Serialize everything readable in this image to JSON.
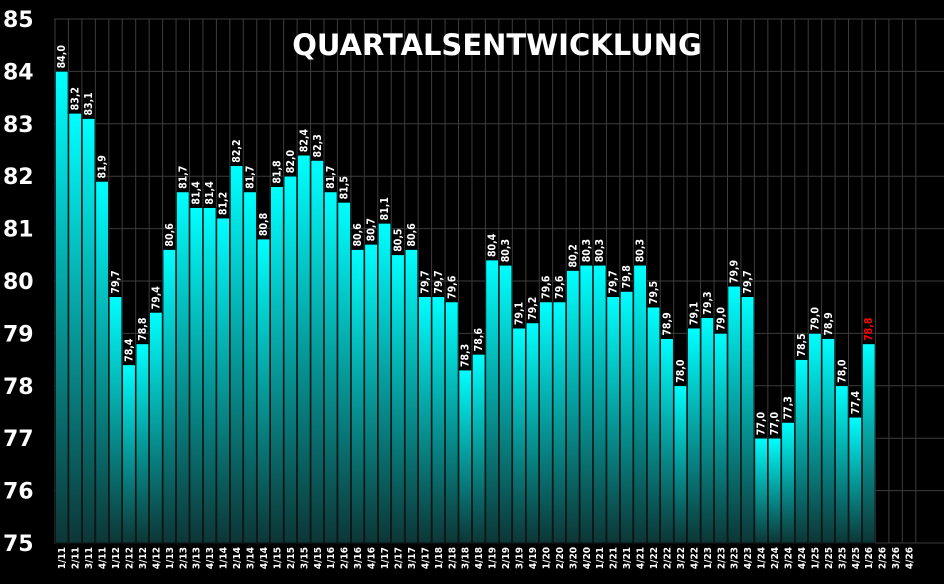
{
  "chart_data": {
    "type": "bar",
    "title": "QUARTALSENTWICKLUNG",
    "xlabel": "",
    "ylabel": "",
    "ylim": [
      75,
      85
    ],
    "yticks": [
      "75",
      "76",
      "77",
      "78",
      "79",
      "80",
      "81",
      "82",
      "83",
      "84",
      "85"
    ],
    "grid": true,
    "categories": [
      "1/11",
      "2/11",
      "3/11",
      "4/11",
      "1/12",
      "2/12",
      "3/12",
      "4/12",
      "1/13",
      "2/13",
      "3/13",
      "4/13",
      "1/14",
      "2/14",
      "3/14",
      "4/14",
      "1/15",
      "2/15",
      "3/15",
      "4/15",
      "1/16",
      "2/16",
      "3/16",
      "4/16",
      "1/17",
      "2/17",
      "3/17",
      "4/17",
      "1/18",
      "2/18",
      "3/18",
      "4/18",
      "1/19",
      "2/19",
      "3/19",
      "4/19",
      "1/20",
      "2/20",
      "3/20",
      "4/20",
      "1/21",
      "2/21",
      "3/21",
      "4/21",
      "1/22",
      "2/22",
      "3/22",
      "4/22",
      "1/23",
      "2/23",
      "3/23",
      "4/23",
      "1/24",
      "2/24",
      "3/24",
      "4/24",
      "1/25",
      "2/25",
      "3/25",
      "4/25",
      "1/26",
      "2/26",
      "3/26",
      "4/26"
    ],
    "values": [
      84.0,
      83.2,
      83.1,
      81.9,
      79.7,
      78.4,
      78.8,
      79.4,
      80.6,
      81.7,
      81.4,
      81.4,
      81.2,
      82.2,
      81.7,
      80.8,
      81.8,
      82.0,
      82.4,
      82.3,
      81.7,
      81.5,
      80.6,
      80.7,
      81.1,
      80.5,
      80.6,
      79.7,
      79.7,
      79.6,
      78.3,
      78.6,
      80.4,
      80.3,
      79.1,
      79.2,
      79.6,
      79.6,
      80.2,
      80.3,
      80.3,
      79.7,
      79.8,
      80.3,
      79.5,
      78.9,
      78.0,
      79.1,
      79.3,
      79.0,
      79.9,
      79.7,
      77.0,
      77.0,
      77.3,
      78.5,
      79.0,
      78.9,
      78.0,
      77.4,
      78.8,
      null,
      null,
      null
    ],
    "data_labels": [
      "84,0",
      "83,2",
      "83,1",
      "81,9",
      "79,7",
      "78,4",
      "78,8",
      "79,4",
      "80,6",
      "81,7",
      "81,4",
      "81,4",
      "81,2",
      "82,2",
      "81,7",
      "80,8",
      "81,8",
      "82,0",
      "82,4",
      "82,3",
      "81,7",
      "81,5",
      "80,6",
      "80,7",
      "81,1",
      "80,5",
      "80,6",
      "79,7",
      "79,7",
      "79,6",
      "78,3",
      "78,6",
      "80,4",
      "80,3",
      "79,1",
      "79,2",
      "79,6",
      "79,6",
      "80,2",
      "80,3",
      "80,3",
      "79,7",
      "79,8",
      "80,3",
      "79,5",
      "78,9",
      "78,0",
      "79,1",
      "79,3",
      "79,0",
      "79,9",
      "79,7",
      "77,0",
      "77,0",
      "77,3",
      "78,5",
      "79,0",
      "78,9",
      "78,0",
      "77,4",
      "78,8",
      "",
      "",
      ""
    ],
    "highlight_index": 60,
    "colors": {
      "background": "#000000",
      "bar_top": "#00ffff",
      "bar_bottom": "#0d3636",
      "bar_stroke": "#000000",
      "label": "#ffffff",
      "highlight_label": "#ff0000",
      "grid": "#3c3c3c"
    }
  }
}
